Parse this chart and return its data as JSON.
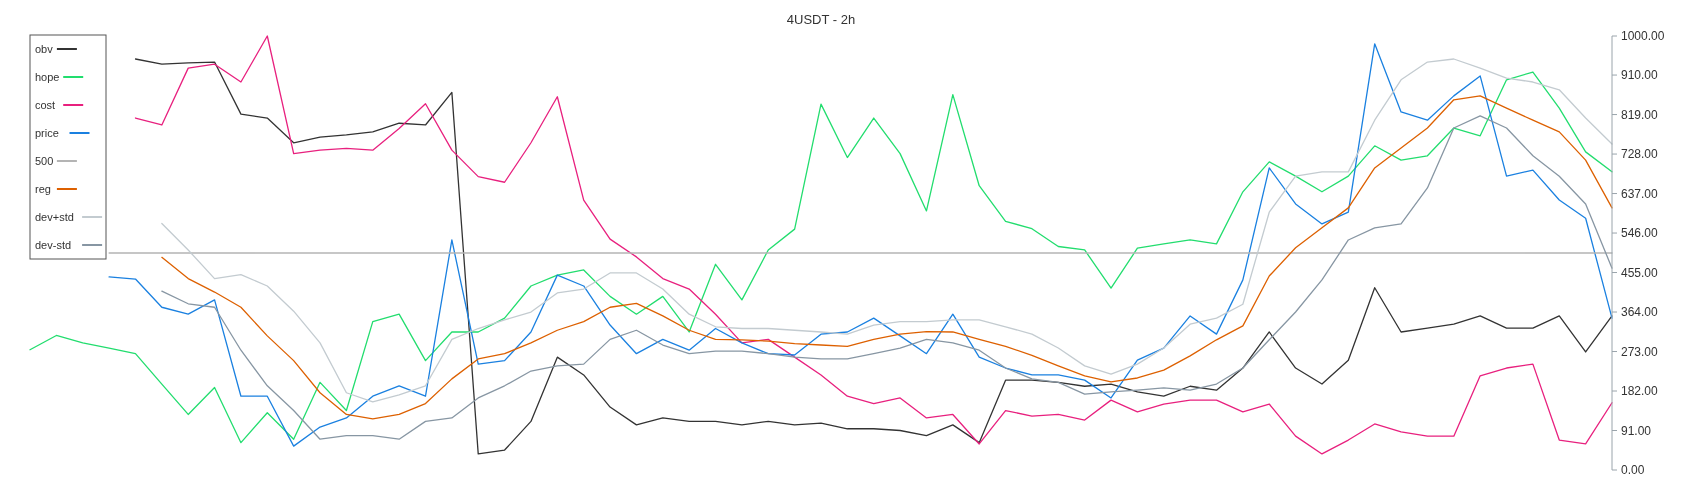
{
  "chart_data": {
    "type": "line",
    "title": "4USDT - 2h",
    "categories": [
      null,
      null,
      null,
      null,
      null,
      null,
      null,
      null,
      null,
      null,
      null,
      null,
      null,
      null,
      null,
      null,
      null,
      null,
      null,
      null,
      null,
      null,
      null,
      null,
      null,
      null,
      null,
      null,
      null,
      null,
      null,
      null,
      null,
      null,
      null,
      null,
      null,
      null,
      null,
      null,
      null,
      null,
      null,
      null,
      null,
      null,
      null,
      null,
      null,
      null,
      null,
      null,
      null,
      null,
      null,
      null,
      null,
      null,
      null,
      null,
      null
    ],
    "ylim": [
      0,
      1000
    ],
    "yticks": [
      {
        "value": 0,
        "label": "0.00"
      },
      {
        "value": 91,
        "label": "91.00"
      },
      {
        "value": 182,
        "label": "182.00"
      },
      {
        "value": 273,
        "label": "273.00"
      },
      {
        "value": 364,
        "label": "364.00"
      },
      {
        "value": 455,
        "label": "455.00"
      },
      {
        "value": 546,
        "label": "546.00"
      },
      {
        "value": 637,
        "label": "637.00"
      },
      {
        "value": 728,
        "label": "728.00"
      },
      {
        "value": 819,
        "label": "819.00"
      },
      {
        "value": 910,
        "label": "910.00"
      },
      {
        "value": 1000,
        "label": "1000.00"
      }
    ],
    "tick_labels": "y",
    "legend": "top left",
    "grid": false,
    "series": [
      {
        "name": "obv",
        "color": "#333333",
        "values": [
          null,
          null,
          null,
          null,
          947,
          935,
          938,
          940,
          820,
          811,
          754,
          767,
          772,
          779,
          799,
          795,
          870,
          37,
          46,
          112,
          260,
          219,
          145,
          104,
          120,
          112,
          112,
          104,
          112,
          104,
          108,
          95,
          95,
          91,
          79,
          104,
          63,
          207,
          207,
          202,
          193,
          198,
          180,
          170,
          193,
          184,
          235,
          318,
          235,
          198,
          253,
          420,
          318,
          327,
          336,
          355,
          327,
          327,
          355,
          272,
          355
        ]
      },
      {
        "name": "hope",
        "color": "#22dd6e",
        "values": [
          277,
          310,
          293,
          281,
          268,
          198,
          128,
          190,
          63,
          132,
          71,
          202,
          137,
          342,
          359,
          252,
          318,
          318,
          350,
          424,
          449,
          461,
          400,
          359,
          400,
          318,
          474,
          392,
          507,
          555,
          843,
          720,
          811,
          729,
          597,
          865,
          655,
          573,
          556,
          515,
          507,
          419,
          511,
          521,
          530,
          521,
          641,
          710,
          677,
          641,
          677,
          747,
          714,
          724,
          788,
          770,
          899,
          917,
          834,
          733,
          687
        ]
      },
      {
        "name": "cost",
        "color": "#e8207e",
        "values": [
          null,
          null,
          null,
          null,
          811,
          795,
          926,
          935,
          894,
          1000,
          729,
          737,
          741,
          737,
          787,
          844,
          737,
          676,
          663,
          754,
          860,
          622,
          532,
          491,
          441,
          417,
          359,
          293,
          301,
          260,
          219,
          170,
          153,
          166,
          120,
          128,
          60,
          137,
          124,
          128,
          115,
          161,
          134,
          152,
          161,
          161,
          134,
          152,
          78,
          37,
          69,
          106,
          88,
          78,
          78,
          217,
          235,
          244,
          69,
          60,
          155
        ]
      },
      {
        "name": "price",
        "color": "#1a80e0",
        "values": [
          null,
          null,
          null,
          445,
          440,
          375,
          359,
          392,
          170,
          170,
          55,
          99,
          120,
          170,
          194,
          170,
          530,
          244,
          252,
          318,
          449,
          424,
          334,
          268,
          301,
          276,
          326,
          293,
          268,
          265,
          313,
          318,
          350,
          309,
          268,
          359,
          260,
          235,
          219,
          219,
          207,
          166,
          253,
          281,
          355,
          313,
          438,
          696,
          613,
          567,
          594,
          982,
          825,
          806,
          862,
          908,
          677,
          691,
          622,
          580,
          350
        ]
      },
      {
        "name": "500",
        "color": "#b4b4b4",
        "values": [
          null,
          null,
          null,
          500,
          500,
          500,
          500,
          500,
          500,
          500,
          500,
          500,
          500,
          500,
          500,
          500,
          500,
          500,
          500,
          500,
          500,
          500,
          500,
          500,
          500,
          500,
          500,
          500,
          500,
          500,
          500,
          500,
          500,
          500,
          500,
          500,
          500,
          500,
          500,
          500,
          500,
          500,
          500,
          500,
          500,
          500,
          500,
          500,
          500,
          500,
          500,
          500,
          500,
          500,
          500,
          500,
          500,
          500,
          500,
          500,
          500
        ]
      },
      {
        "name": "reg",
        "color": "#dd6000",
        "values": [
          null,
          null,
          null,
          null,
          null,
          490,
          441,
          410,
          375,
          309,
          252,
          178,
          128,
          118,
          128,
          153,
          210,
          256,
          268,
          293,
          322,
          342,
          375,
          384,
          355,
          322,
          301,
          300,
          297,
          291,
          288,
          285,
          301,
          313,
          319,
          318,
          301,
          285,
          264,
          240,
          217,
          203,
          212,
          230,
          263,
          300,
          332,
          447,
          512,
          558,
          604,
          696,
          742,
          788,
          853,
          862,
          834,
          806,
          779,
          714,
          604
        ]
      },
      {
        "name": "dev+std",
        "color": "#c3cbd0",
        "values": [
          null,
          null,
          null,
          null,
          null,
          568,
          507,
          441,
          450,
          424,
          366,
          293,
          178,
          157,
          173,
          194,
          301,
          326,
          346,
          364,
          408,
          417,
          454,
          454,
          417,
          359,
          330,
          326,
          326,
          322,
          318,
          313,
          334,
          342,
          342,
          346,
          346,
          330,
          313,
          281,
          240,
          221,
          244,
          281,
          336,
          350,
          382,
          594,
          677,
          687,
          687,
          806,
          899,
          940,
          947,
          926,
          903,
          894,
          876,
          811,
          751
        ]
      },
      {
        "name": "dev-std",
        "color": "#8796a3",
        "values": [
          null,
          null,
          null,
          null,
          null,
          412,
          383,
          375,
          276,
          194,
          137,
          71,
          79,
          79,
          71,
          112,
          120,
          166,
          194,
          228,
          240,
          244,
          301,
          322,
          288,
          268,
          274,
          274,
          268,
          260,
          256,
          256,
          268,
          281,
          301,
          293,
          276,
          235,
          210,
          202,
          175,
          180,
          184,
          189,
          184,
          198,
          235,
          300,
          364,
          438,
          530,
          558,
          567,
          650,
          788,
          816,
          788,
          724,
          677,
          613,
          465
        ]
      }
    ]
  }
}
